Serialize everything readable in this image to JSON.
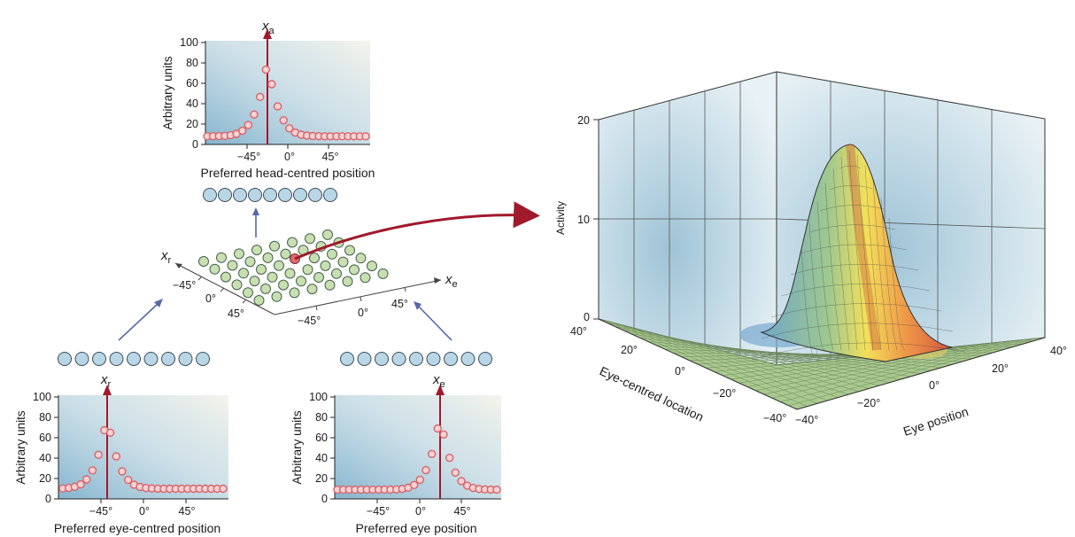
{
  "colors": {
    "curve_point": "#d8626a",
    "curve_point_fill": "#f6d3d3",
    "arrow": "#a01a2c",
    "blue_arrow": "#5568a8",
    "unit_blue": "#b9d6e6",
    "unit_green": "#c7dfb1"
  },
  "top_plot": {
    "var": "x",
    "sub": "a",
    "ylabel": "Arbitrary units",
    "xlabel": "Preferred head-centred position",
    "yticks": [
      "0",
      "20",
      "40",
      "60",
      "80",
      "100"
    ],
    "xticks": [
      "−45°",
      "0°",
      "45°"
    ]
  },
  "left_plot": {
    "var": "x",
    "sub": "r",
    "ylabel": "Arbitrary units",
    "xlabel": "Preferred eye-centred position",
    "yticks": [
      "0",
      "20",
      "40",
      "60",
      "80",
      "100"
    ],
    "xticks": [
      "−45°",
      "0°",
      "45°"
    ]
  },
  "right_plot": {
    "var": "x",
    "sub": "e",
    "ylabel": "Arbitrary units",
    "xlabel": "Preferred eye position",
    "yticks": [
      "0",
      "20",
      "40",
      "60",
      "80",
      "100"
    ],
    "xticks": [
      "−45°",
      "0°",
      "45°"
    ]
  },
  "grid_layer": {
    "xr_var": "x",
    "xr_sub": "r",
    "xe_var": "x",
    "xe_sub": "e",
    "left_ticks": [
      "−45°",
      "0°",
      "45°"
    ],
    "front_ticks": [
      "−45°",
      "0°",
      "45°"
    ]
  },
  "surface_plot": {
    "z_label": "Activity",
    "z_ticks": [
      "0",
      "10",
      "20"
    ],
    "left_axis_label": "Eye-centred location",
    "left_ticks": [
      "40°",
      "20°",
      "0°",
      "−20°",
      "−40°"
    ],
    "right_axis_label": "Eye position",
    "right_ticks": [
      "−40°",
      "−20°",
      "0°",
      "20°",
      "40°"
    ]
  }
}
